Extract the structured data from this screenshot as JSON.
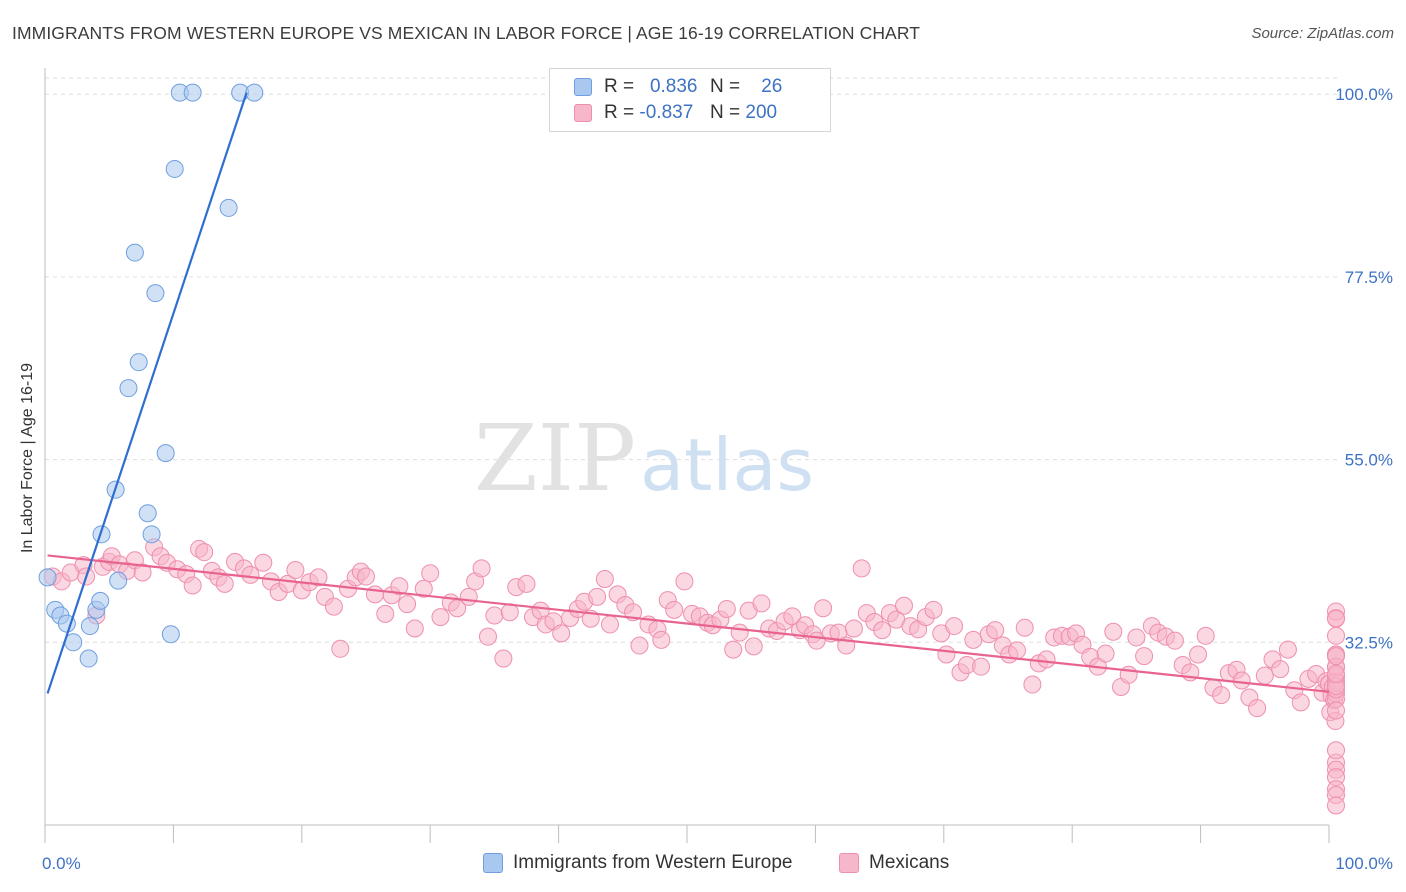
{
  "header": {
    "title": "IMMIGRANTS FROM WESTERN EUROPE VS MEXICAN IN LABOR FORCE | AGE 16-19 CORRELATION CHART",
    "source": "Source: ZipAtlas.com"
  },
  "watermark": {
    "zip": "ZIP",
    "atlas": "atlas"
  },
  "legend_top": {
    "rows": [
      {
        "r_label": "R =",
        "r_value": "0.836",
        "n_label": "N =",
        "n_value": "26",
        "color": "#a9c8ef"
      },
      {
        "r_label": "R =",
        "r_value": "-0.837",
        "n_label": "N =",
        "n_value": "200",
        "color": "#f7b7cb"
      }
    ]
  },
  "legend_bottom": {
    "items": [
      {
        "label": "Immigrants from Western Europe",
        "color": "#a9c8ef"
      },
      {
        "label": "Mexicans",
        "color": "#f7b7cb"
      }
    ]
  },
  "colors": {
    "blue_fill": "#a9c8ef",
    "blue_stroke": "#6f9fe0",
    "blue_line": "#2e6fd0",
    "pink_fill": "#f7b7cb",
    "pink_stroke": "#ee8fae",
    "pink_line": "#e8648f",
    "grid": "#dddddd",
    "tick_text": "#3d72c4"
  },
  "chart_data": {
    "type": "scatter",
    "title": "IMMIGRANTS FROM WESTERN EUROPE VS MEXICAN IN LABOR FORCE | AGE 16-19 CORRELATION CHART",
    "xlabel": "",
    "ylabel": "In Labor Force | Age 16-19",
    "xlim": [
      0,
      100
    ],
    "ylim": [
      10,
      102
    ],
    "x_tick_labels": [
      "0.0%",
      "100.0%"
    ],
    "y_ticks": [
      32.5,
      55.0,
      77.5,
      100.0
    ],
    "y_tick_labels": [
      "32.5%",
      "55.0%",
      "77.5%",
      "100.0%"
    ],
    "grid": true,
    "legend_position": "top-center",
    "series": [
      {
        "name": "Immigrants from Western Europe",
        "r": 0.836,
        "n": 26,
        "trend": {
          "x0": 0.2,
          "y0": 26.2,
          "x1": 15.7,
          "y1": 100.2
        },
        "points": [
          [
            0.2,
            40.5
          ],
          [
            0.8,
            36.5
          ],
          [
            1.2,
            35.8
          ],
          [
            1.7,
            34.8
          ],
          [
            2.2,
            32.5
          ],
          [
            3.5,
            34.5
          ],
          [
            3.4,
            30.5
          ],
          [
            4.0,
            36.5
          ],
          [
            4.3,
            37.6
          ],
          [
            4.4,
            45.8
          ],
          [
            5.5,
            51.3
          ],
          [
            5.7,
            40.1
          ],
          [
            7.0,
            80.5
          ],
          [
            7.3,
            67.0
          ],
          [
            6.5,
            63.8
          ],
          [
            8.0,
            48.4
          ],
          [
            8.3,
            45.8
          ],
          [
            8.6,
            75.5
          ],
          [
            9.4,
            55.8
          ],
          [
            9.8,
            33.5
          ],
          [
            10.1,
            90.8
          ],
          [
            10.5,
            100.2
          ],
          [
            11.5,
            100.2
          ],
          [
            14.3,
            86.0
          ],
          [
            15.2,
            100.2
          ],
          [
            16.3,
            100.2
          ]
        ]
      },
      {
        "name": "Mexicans",
        "r": -0.837,
        "n": 200,
        "trend": {
          "x0": 0.2,
          "y0": 43.2,
          "x1": 100.0,
          "y1": 26.4
        },
        "points": [
          [
            0.6,
            40.6
          ],
          [
            1.3,
            40.0
          ],
          [
            2.0,
            41.1
          ],
          [
            3.0,
            42.0
          ],
          [
            3.2,
            40.6
          ],
          [
            4.0,
            35.8
          ],
          [
            4.5,
            41.8
          ],
          [
            5.0,
            42.4
          ],
          [
            5.2,
            43.1
          ],
          [
            5.8,
            42.1
          ],
          [
            6.4,
            41.3
          ],
          [
            7.0,
            42.6
          ],
          [
            7.6,
            41.1
          ],
          [
            8.5,
            44.2
          ],
          [
            9.0,
            43.1
          ],
          [
            9.5,
            42.3
          ],
          [
            10.3,
            41.5
          ],
          [
            11.0,
            40.9
          ],
          [
            11.5,
            39.5
          ],
          [
            12.0,
            44.0
          ],
          [
            12.4,
            43.6
          ],
          [
            13.0,
            41.3
          ],
          [
            13.5,
            40.5
          ],
          [
            14.0,
            39.7
          ],
          [
            14.8,
            42.4
          ],
          [
            15.5,
            41.6
          ],
          [
            16.0,
            40.8
          ],
          [
            17.0,
            42.3
          ],
          [
            17.6,
            40.0
          ],
          [
            18.2,
            38.7
          ],
          [
            18.9,
            39.7
          ],
          [
            19.5,
            41.4
          ],
          [
            20.0,
            38.9
          ],
          [
            20.6,
            39.9
          ],
          [
            21.3,
            40.5
          ],
          [
            21.8,
            38.1
          ],
          [
            22.5,
            36.9
          ],
          [
            23.0,
            31.7
          ],
          [
            23.6,
            39.1
          ],
          [
            24.2,
            40.5
          ],
          [
            24.6,
            41.2
          ],
          [
            25.0,
            40.6
          ],
          [
            25.7,
            38.4
          ],
          [
            26.5,
            36.0
          ],
          [
            27.0,
            38.3
          ],
          [
            27.6,
            39.4
          ],
          [
            28.2,
            37.2
          ],
          [
            28.8,
            34.2
          ],
          [
            29.5,
            39.1
          ],
          [
            30.0,
            41.0
          ],
          [
            30.8,
            35.6
          ],
          [
            31.6,
            37.4
          ],
          [
            32.1,
            36.7
          ],
          [
            33.0,
            38.1
          ],
          [
            33.5,
            40.0
          ],
          [
            34.0,
            41.6
          ],
          [
            34.5,
            33.2
          ],
          [
            35.0,
            35.8
          ],
          [
            35.7,
            30.5
          ],
          [
            36.2,
            36.2
          ],
          [
            36.7,
            39.3
          ],
          [
            37.5,
            39.7
          ],
          [
            38.0,
            35.6
          ],
          [
            38.6,
            36.4
          ],
          [
            39.0,
            34.7
          ],
          [
            39.6,
            35.1
          ],
          [
            40.2,
            33.6
          ],
          [
            40.9,
            35.5
          ],
          [
            41.5,
            36.6
          ],
          [
            42.0,
            37.5
          ],
          [
            42.5,
            35.4
          ],
          [
            43.0,
            38.1
          ],
          [
            43.6,
            40.3
          ],
          [
            44.0,
            34.7
          ],
          [
            44.6,
            38.4
          ],
          [
            45.2,
            37.1
          ],
          [
            45.8,
            36.2
          ],
          [
            46.3,
            32.1
          ],
          [
            47.0,
            34.7
          ],
          [
            47.7,
            34.1
          ],
          [
            48.0,
            32.8
          ],
          [
            48.5,
            37.7
          ],
          [
            49.0,
            36.5
          ],
          [
            49.8,
            40.0
          ],
          [
            50.4,
            36.0
          ],
          [
            51.0,
            35.7
          ],
          [
            51.6,
            34.9
          ],
          [
            52.0,
            34.6
          ],
          [
            52.6,
            35.3
          ],
          [
            53.1,
            36.6
          ],
          [
            53.6,
            31.6
          ],
          [
            54.1,
            33.7
          ],
          [
            54.8,
            36.4
          ],
          [
            55.2,
            32.0
          ],
          [
            55.8,
            37.3
          ],
          [
            56.4,
            34.2
          ],
          [
            57.0,
            33.9
          ],
          [
            57.6,
            35.1
          ],
          [
            58.2,
            35.7
          ],
          [
            58.8,
            34.0
          ],
          [
            59.2,
            34.6
          ],
          [
            59.8,
            33.5
          ],
          [
            60.1,
            32.7
          ],
          [
            60.6,
            36.7
          ],
          [
            61.2,
            33.6
          ],
          [
            61.8,
            33.7
          ],
          [
            62.4,
            32.1
          ],
          [
            63.0,
            34.2
          ],
          [
            63.6,
            41.6
          ],
          [
            64.0,
            36.1
          ],
          [
            64.6,
            35.0
          ],
          [
            65.2,
            34.0
          ],
          [
            65.8,
            36.1
          ],
          [
            66.3,
            35.3
          ],
          [
            66.9,
            37.0
          ],
          [
            67.4,
            34.5
          ],
          [
            68.0,
            34.1
          ],
          [
            68.6,
            35.6
          ],
          [
            69.2,
            36.5
          ],
          [
            69.8,
            33.6
          ],
          [
            70.2,
            31.0
          ],
          [
            70.8,
            34.5
          ],
          [
            71.3,
            28.8
          ],
          [
            71.8,
            29.7
          ],
          [
            72.3,
            32.8
          ],
          [
            72.9,
            29.5
          ],
          [
            73.5,
            33.5
          ],
          [
            74.0,
            34.0
          ],
          [
            74.6,
            32.1
          ],
          [
            75.1,
            31.0
          ],
          [
            75.7,
            31.5
          ],
          [
            76.3,
            34.3
          ],
          [
            76.9,
            27.3
          ],
          [
            77.4,
            29.9
          ],
          [
            78.0,
            30.4
          ],
          [
            78.6,
            33.1
          ],
          [
            79.2,
            33.3
          ],
          [
            79.8,
            33.2
          ],
          [
            80.3,
            33.6
          ],
          [
            80.8,
            32.2
          ],
          [
            81.4,
            30.7
          ],
          [
            82.0,
            29.5
          ],
          [
            82.6,
            31.1
          ],
          [
            83.2,
            33.8
          ],
          [
            83.8,
            27.0
          ],
          [
            84.4,
            28.5
          ],
          [
            85.0,
            33.1
          ],
          [
            85.6,
            30.8
          ],
          [
            86.2,
            34.5
          ],
          [
            86.7,
            33.7
          ],
          [
            87.3,
            33.2
          ],
          [
            88.0,
            32.7
          ],
          [
            88.6,
            29.7
          ],
          [
            89.2,
            28.8
          ],
          [
            89.8,
            31.0
          ],
          [
            90.4,
            33.3
          ],
          [
            91.0,
            26.9
          ],
          [
            91.6,
            26.0
          ],
          [
            92.2,
            28.7
          ],
          [
            92.8,
            29.1
          ],
          [
            93.2,
            27.8
          ],
          [
            93.8,
            25.7
          ],
          [
            94.4,
            24.4
          ],
          [
            95.0,
            28.4
          ],
          [
            95.6,
            30.4
          ],
          [
            96.2,
            29.2
          ],
          [
            96.8,
            31.6
          ],
          [
            97.3,
            26.6
          ],
          [
            97.8,
            25.1
          ],
          [
            98.4,
            28.0
          ],
          [
            99.0,
            28.6
          ],
          [
            99.5,
            26.3
          ],
          [
            99.8,
            27.7
          ],
          [
            100.0,
            27.4
          ],
          [
            100.1,
            23.9
          ],
          [
            100.2,
            25.9
          ],
          [
            100.3,
            27.0
          ],
          [
            100.4,
            25.4
          ],
          [
            100.5,
            22.8
          ],
          [
            100.6,
            31.0
          ],
          [
            100.7,
            29.4
          ],
          [
            100.8,
            27.8
          ],
          [
            100.9,
            33.3
          ],
          [
            101.0,
            26.2
          ],
          [
            101.1,
            25.5
          ],
          [
            101.2,
            24.1
          ],
          [
            101.3,
            17.7
          ],
          [
            101.4,
            16.8
          ],
          [
            101.5,
            15.9
          ],
          [
            101.6,
            14.4
          ],
          [
            101.7,
            13.7
          ],
          [
            101.8,
            12.4
          ],
          [
            101.9,
            19.2
          ],
          [
            102.0,
            35.5
          ],
          [
            102.1,
            36.3
          ],
          [
            102.2,
            35.4
          ],
          [
            102.3,
            31.0
          ],
          [
            102.4,
            28.3
          ],
          [
            102.5,
            27.6
          ],
          [
            102.6,
            26.7
          ],
          [
            102.7,
            29.5
          ],
          [
            102.8,
            27.1
          ],
          [
            102.9,
            30.8
          ],
          [
            103.0,
            28.6
          ]
        ]
      }
    ]
  }
}
